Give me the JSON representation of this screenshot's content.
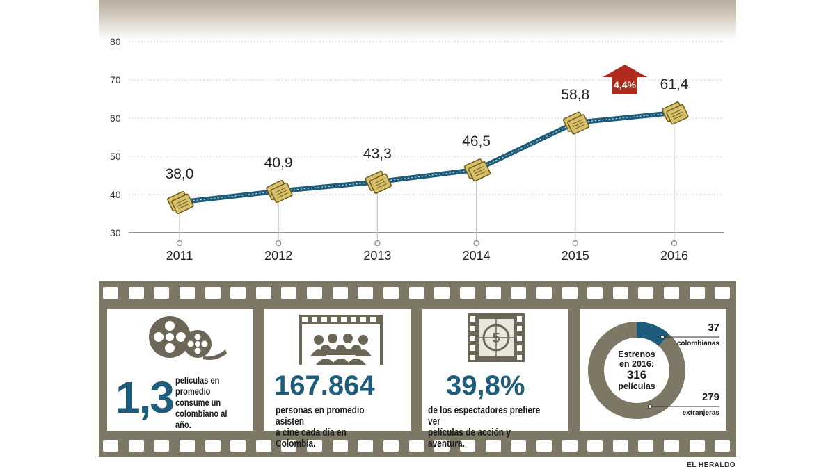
{
  "chart_data": {
    "type": "line",
    "categories": [
      "2011",
      "2012",
      "2013",
      "2014",
      "2015",
      "2016"
    ],
    "values": [
      38.0,
      40.9,
      43.3,
      46.5,
      58.8,
      61.4
    ],
    "value_labels": [
      "38,0",
      "40,9",
      "43,3",
      "46,5",
      "58,8",
      "61,4"
    ],
    "yticks": [
      80,
      70,
      60,
      50,
      40,
      30
    ],
    "ylim": [
      30,
      80
    ],
    "grid": true,
    "annotation": "4,4%",
    "colors": {
      "line": "#1d5c7a",
      "marker": "#d8c06a",
      "arrow": "#b12a1e",
      "grid": "#bcbcbc"
    }
  },
  "stats": {
    "per_capita": {
      "value": "1,3",
      "text": [
        "películas en",
        "promedio",
        "consume un",
        "colombiano al año."
      ]
    },
    "daily": {
      "value": "167.864",
      "text": [
        "personas en promedio asisten",
        "a cine cada día en Colombia."
      ]
    },
    "action": {
      "value": "39,8%",
      "text": [
        "de los espectadores prefiere ver",
        "películas de acción y aventura."
      ]
    },
    "releases": {
      "center": [
        "Estrenos",
        "en 2016:",
        "316",
        "películas"
      ],
      "colombianas_value": "37",
      "colombianas_label": "colombianas",
      "extranjeras_value": "279",
      "extranjeras_label": "extranjeras",
      "donut": {
        "colombianas": 37,
        "extranjeras": 279
      },
      "colors": {
        "colombianas": "#1d5c7a",
        "extranjeras": "#7d7866"
      }
    }
  },
  "credit": "EL HERALDO"
}
